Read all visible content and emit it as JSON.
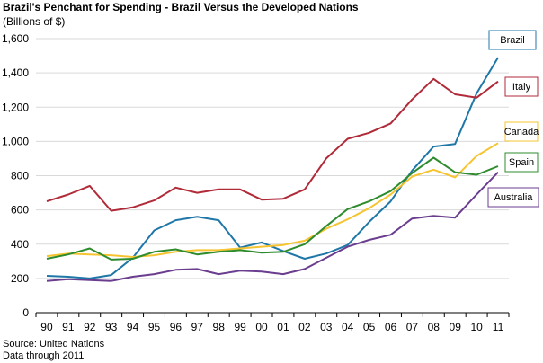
{
  "chart_data": {
    "type": "line",
    "title": "Brazil's Penchant for Spending - Brazil Versus the Developed Nations",
    "subtitle": "(Billions of $)",
    "xlabel": "",
    "ylabel": "",
    "x": [
      "90",
      "91",
      "92",
      "93",
      "94",
      "95",
      "96",
      "97",
      "98",
      "99",
      "00",
      "01",
      "02",
      "03",
      "04",
      "05",
      "06",
      "07",
      "08",
      "09",
      "10",
      "11"
    ],
    "y_ticks": [
      "0",
      "200",
      "400",
      "600",
      "800",
      "1,000",
      "1,200",
      "1,400",
      "1,600"
    ],
    "ylim": [
      0,
      1600
    ],
    "grid": "horizontal",
    "legend": "right, callout boxes at line ends",
    "series": [
      {
        "name": "Brazil",
        "color": "#1f77a8",
        "values": [
          215,
          210,
          200,
          220,
          320,
          480,
          540,
          560,
          540,
          380,
          410,
          360,
          315,
          345,
          395,
          530,
          650,
          830,
          970,
          985,
          1280,
          1490
        ]
      },
      {
        "name": "Italy",
        "color": "#b02a38",
        "values": [
          650,
          690,
          740,
          595,
          615,
          655,
          730,
          700,
          720,
          720,
          660,
          665,
          720,
          900,
          1015,
          1050,
          1105,
          1245,
          1365,
          1275,
          1255,
          1350
        ]
      },
      {
        "name": "Canada",
        "color": "#f5c430",
        "values": [
          330,
          345,
          340,
          335,
          325,
          335,
          355,
          365,
          365,
          375,
          385,
          395,
          420,
          490,
          545,
          610,
          690,
          795,
          835,
          790,
          915,
          990
        ]
      },
      {
        "name": "Spain",
        "color": "#2e8b2e",
        "values": [
          315,
          340,
          375,
          310,
          315,
          355,
          370,
          340,
          355,
          365,
          350,
          355,
          400,
          505,
          605,
          650,
          710,
          815,
          905,
          820,
          805,
          855
        ]
      },
      {
        "name": "Australia",
        "color": "#6a3d8f",
        "values": [
          185,
          195,
          190,
          185,
          210,
          225,
          250,
          255,
          225,
          245,
          240,
          225,
          255,
          320,
          385,
          425,
          455,
          550,
          565,
          555,
          690,
          820
        ]
      }
    ],
    "legend_labels": [
      "Brazil",
      "Italy",
      "Canada",
      "Spain",
      "Australia"
    ]
  },
  "footnotes": [
    "Source: United Nations",
    "Data through 2011"
  ]
}
